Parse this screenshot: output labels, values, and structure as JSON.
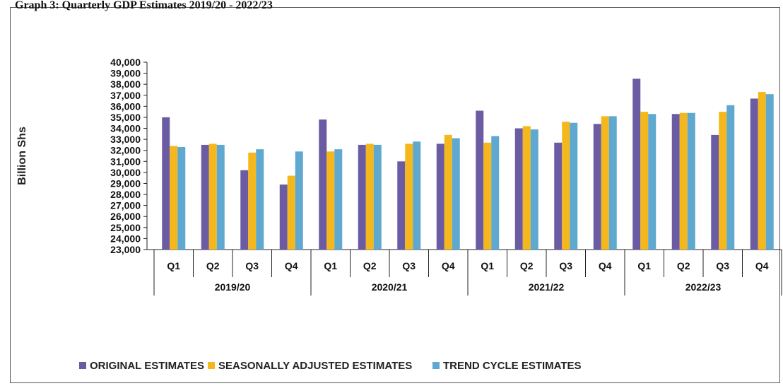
{
  "title": "Graph 3: Quarterly GDP Estimates 2019/20 - 2022/23",
  "chart_data": {
    "type": "bar",
    "ylabel": "Billion Shs",
    "ylim": [
      23000,
      40000
    ],
    "ytick_step": 1000,
    "yticks": [
      "23,000",
      "24,000",
      "25,000",
      "26,000",
      "27,000",
      "28,000",
      "29,000",
      "30,000",
      "31,000",
      "32,000",
      "33,000",
      "34,000",
      "35,000",
      "36,000",
      "37,000",
      "38,000",
      "39,000",
      "40,000"
    ],
    "categories": [
      "Q1",
      "Q2",
      "Q3",
      "Q4",
      "Q1",
      "Q2",
      "Q3",
      "Q4",
      "Q1",
      "Q2",
      "Q3",
      "Q4",
      "Q1",
      "Q2",
      "Q3",
      "Q4"
    ],
    "groups": [
      "2019/20",
      "2020/21",
      "2021/22",
      "2022/23"
    ],
    "legend_position": "bottom",
    "series": [
      {
        "name": "ORIGINAL ESTIMATES",
        "color": "#6b5ba3",
        "values": [
          35000,
          32500,
          30200,
          28900,
          34800,
          32500,
          31000,
          32600,
          35600,
          34000,
          32700,
          34400,
          38500,
          35300,
          33400,
          36700
        ]
      },
      {
        "name": "SEASONALLY ADJUSTED ESTIMATES",
        "color": "#f5b81c",
        "values": [
          32400,
          32600,
          31800,
          29700,
          31900,
          32600,
          32600,
          33400,
          32700,
          34200,
          34600,
          35100,
          35500,
          35400,
          35500,
          37300
        ]
      },
      {
        "name": "TREND CYCLE ESTIMATES",
        "color": "#5fa8cf",
        "values": [
          32300,
          32500,
          32100,
          31900,
          32100,
          32500,
          32800,
          33100,
          33300,
          33900,
          34500,
          35100,
          35300,
          35400,
          36100,
          37100
        ]
      }
    ]
  }
}
